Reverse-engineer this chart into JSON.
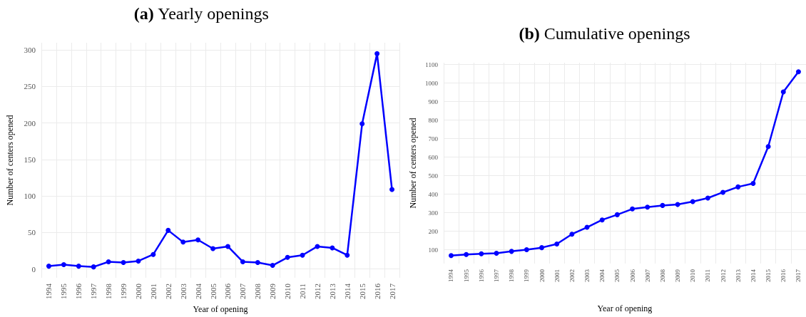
{
  "chart_data": [
    {
      "type": "line",
      "title": "(a) Yearly openings",
      "xlabel": "Year of opening",
      "ylabel": "Number of centers opened",
      "categories": [
        "1994",
        "1995",
        "1996",
        "1997",
        "1998",
        "1999",
        "2000",
        "2001",
        "2002",
        "2003",
        "2004",
        "2005",
        "2006",
        "2007",
        "2008",
        "2009",
        "2010",
        "2011",
        "2012",
        "2013",
        "2014",
        "2015",
        "2016",
        "2017"
      ],
      "series": [
        {
          "color": "#0000ff",
          "values": [
            4,
            6,
            4,
            3,
            10,
            9,
            11,
            20,
            53,
            37,
            40,
            28,
            31,
            10,
            9,
            5,
            16,
            19,
            31,
            29,
            19,
            199,
            295,
            109
          ]
        }
      ],
      "ylim": [
        -12,
        310
      ],
      "yticks": [
        0,
        50,
        100,
        150,
        200,
        250,
        300
      ],
      "grid": true,
      "marker": "circle",
      "line_style": "solid"
    },
    {
      "type": "line",
      "title": "(b) Cumulative openings",
      "xlabel": "Year of opening",
      "ylabel": "Number of centers opened",
      "categories": [
        "1994",
        "1995",
        "1996",
        "1997",
        "1998",
        "1999",
        "2000",
        "2001",
        "2002",
        "2003",
        "2004",
        "2005",
        "2006",
        "2007",
        "2008",
        "2009",
        "2010",
        "2011",
        "2012",
        "2013",
        "2014",
        "2015",
        "2016",
        "2017"
      ],
      "series": [
        {
          "color": "#0000ff",
          "values": [
            68,
            74,
            78,
            81,
            91,
            100,
            111,
            131,
            184,
            221,
            261,
            289,
            320,
            330,
            339,
            344,
            360,
            379,
            410,
            439,
            458,
            657,
            952,
            1061
          ]
        }
      ],
      "ylim": [
        25,
        1110
      ],
      "yticks": [
        100,
        200,
        300,
        400,
        500,
        600,
        700,
        800,
        900,
        1000,
        1100
      ],
      "grid": true,
      "marker": "circle",
      "line_style": "solid"
    }
  ]
}
